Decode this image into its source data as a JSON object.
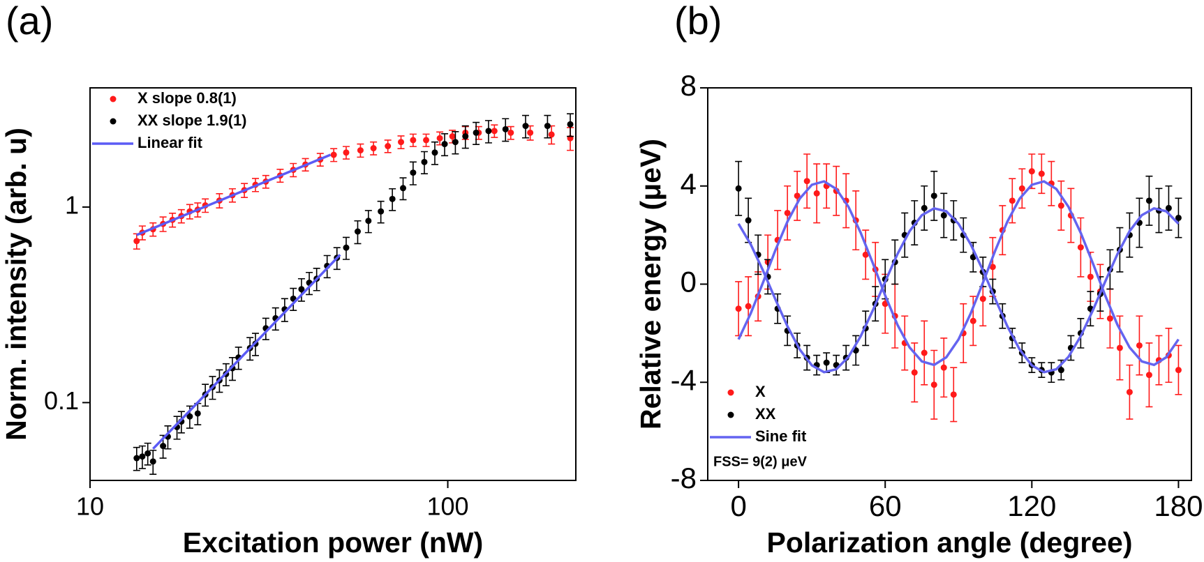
{
  "chart_data": [
    {
      "type": "scatter",
      "label": "(a)",
      "xlabel": "Excitation power (nW)",
      "ylabel": "Norm. intensity (arb. u)",
      "xlog": true,
      "ylog": true,
      "xlim": [
        10,
        228
      ],
      "ylim": [
        0.04,
        4.07
      ],
      "xticks": [
        10,
        100
      ],
      "yticks": [
        0.1,
        1
      ],
      "legend": "upper left",
      "series": [
        {
          "name": "X slope 0.8(1)",
          "color": "#ff1a1a",
          "x": [
            13.5,
            14,
            15,
            16,
            17,
            18,
            19,
            20,
            21,
            23,
            25,
            27,
            29,
            31,
            34,
            37,
            40,
            44,
            48,
            52,
            57,
            62,
            68,
            74,
            80,
            87,
            95,
            103,
            112,
            122,
            135,
            150,
            170,
            195,
            220
          ],
          "values": [
            0.67,
            0.74,
            0.77,
            0.82,
            0.86,
            0.9,
            0.95,
            0.97,
            1.02,
            1.08,
            1.15,
            1.22,
            1.3,
            1.35,
            1.45,
            1.55,
            1.65,
            1.75,
            1.85,
            1.9,
            1.95,
            2.0,
            2.05,
            2.15,
            2.2,
            2.2,
            2.25,
            2.3,
            2.4,
            2.4,
            2.45,
            2.4,
            2.4,
            2.35,
            2.25
          ],
          "errors": [
            0.06,
            0.06,
            0.06,
            0.07,
            0.07,
            0.07,
            0.08,
            0.08,
            0.08,
            0.09,
            0.09,
            0.1,
            0.1,
            0.1,
            0.11,
            0.12,
            0.12,
            0.13,
            0.14,
            0.14,
            0.15,
            0.15,
            0.15,
            0.16,
            0.16,
            0.16,
            0.17,
            0.17,
            0.18,
            0.18,
            0.18,
            0.18,
            0.2,
            0.25,
            0.3
          ]
        },
        {
          "name": "XX slope 1.9(1)",
          "color": "#000000",
          "x": [
            13.5,
            14,
            14.5,
            15,
            16,
            16.5,
            17.5,
            18,
            19,
            20,
            21,
            22,
            23,
            24,
            25,
            26,
            28,
            29,
            31,
            33,
            35,
            37,
            39,
            41,
            43,
            46,
            49,
            52,
            56,
            60,
            65,
            70,
            75,
            80,
            86,
            92,
            98,
            105,
            112,
            120,
            130,
            145,
            165,
            190,
            220
          ],
          "values": [
            0.052,
            0.053,
            0.055,
            0.05,
            0.06,
            0.067,
            0.075,
            0.08,
            0.085,
            0.088,
            0.11,
            0.12,
            0.13,
            0.14,
            0.15,
            0.17,
            0.19,
            0.2,
            0.24,
            0.27,
            0.3,
            0.34,
            0.38,
            0.41,
            0.43,
            0.5,
            0.55,
            0.62,
            0.75,
            0.85,
            0.95,
            1.1,
            1.25,
            1.5,
            1.7,
            1.9,
            2.1,
            2.15,
            2.3,
            2.4,
            2.45,
            2.5,
            2.6,
            2.6,
            2.65
          ],
          "errors": [
            0.007,
            0.007,
            0.007,
            0.007,
            0.008,
            0.009,
            0.01,
            0.01,
            0.011,
            0.011,
            0.014,
            0.016,
            0.017,
            0.018,
            0.02,
            0.022,
            0.025,
            0.026,
            0.03,
            0.035,
            0.04,
            0.044,
            0.05,
            0.053,
            0.056,
            0.065,
            0.07,
            0.08,
            0.1,
            0.11,
            0.12,
            0.14,
            0.16,
            0.2,
            0.22,
            0.25,
            0.27,
            0.28,
            0.3,
            0.31,
            0.32,
            0.33,
            0.34,
            0.34,
            0.35
          ]
        },
        {
          "name": "Linear fit",
          "color": "#5b5bf5",
          "line": true,
          "x": [
            13.5,
            47
          ],
          "values": [
            0.72,
            1.85
          ]
        },
        {
          "color": "#5b5bf5",
          "line": true,
          "x": [
            15,
            50
          ],
          "values": [
            0.058,
            0.57
          ]
        }
      ]
    },
    {
      "type": "scatter",
      "label": "(b)",
      "xlabel": "Polarization angle (degree)",
      "ylabel": "Relative energy (μeV)",
      "xlim": [
        -12.6,
        185.3
      ],
      "ylim": [
        -8,
        8
      ],
      "xticks": [
        0,
        60,
        120,
        180
      ],
      "yticks": [
        -8,
        -4,
        0,
        4,
        8
      ],
      "legend": "lower left",
      "annotation": "FSS= 9(2) μeV",
      "series": [
        {
          "name": "X",
          "color": "#ff1a1a",
          "x": [
            0,
            4,
            8,
            12,
            16,
            20,
            24,
            28,
            32,
            36,
            40,
            44,
            48,
            52,
            56,
            60,
            64,
            68,
            72,
            76,
            80,
            84,
            88,
            92,
            96,
            100,
            104,
            108,
            112,
            116,
            120,
            124,
            128,
            132,
            136,
            140,
            144,
            148,
            152,
            156,
            160,
            164,
            168,
            172,
            176,
            180
          ],
          "values": [
            -1.0,
            -0.9,
            -0.5,
            0.9,
            1.8,
            2.9,
            3.6,
            4.2,
            3.7,
            4.0,
            3.8,
            3.4,
            2.6,
            1.2,
            0.6,
            -0.8,
            -1.3,
            -2.4,
            -3.6,
            -2.8,
            -4.1,
            -3.4,
            -4.5,
            -2.0,
            -1.5,
            -0.6,
            0.7,
            2.2,
            3.4,
            3.9,
            4.6,
            4.5,
            4.1,
            3.2,
            2.8,
            1.5,
            0.3,
            -0.3,
            -1.4,
            -2.6,
            -4.4,
            -2.5,
            -3.7,
            -3.1,
            -2.9,
            -3.5
          ],
          "errors": [
            1.1,
            1.2,
            1.0,
            1.1,
            1.2,
            1.1,
            1.0,
            1.1,
            1.2,
            0.9,
            1.0,
            1.1,
            1.2,
            1.0,
            1.1,
            1.2,
            1.3,
            1.1,
            1.2,
            1.3,
            1.4,
            1.2,
            1.1,
            1.2,
            1.0,
            1.1,
            1.2,
            1.0,
            0.9,
            0.8,
            0.7,
            0.8,
            0.9,
            1.0,
            1.1,
            1.2,
            1.0,
            1.1,
            1.2,
            1.3,
            1.1,
            1.2,
            1.3,
            1.0,
            1.1,
            1.0
          ]
        },
        {
          "name": "XX",
          "color": "#000000",
          "x": [
            0,
            4,
            8,
            12,
            16,
            20,
            24,
            28,
            32,
            36,
            40,
            44,
            48,
            52,
            56,
            60,
            64,
            68,
            72,
            76,
            80,
            84,
            88,
            92,
            96,
            100,
            104,
            108,
            112,
            116,
            120,
            124,
            128,
            132,
            136,
            140,
            144,
            148,
            152,
            156,
            160,
            164,
            168,
            172,
            176,
            180
          ],
          "values": [
            3.9,
            2.6,
            1.2,
            0.3,
            -1.0,
            -1.9,
            -2.5,
            -3.0,
            -3.3,
            -3.2,
            -3.3,
            -3.0,
            -2.7,
            -1.8,
            -0.8,
            0.2,
            0.9,
            2.0,
            2.5,
            3.1,
            3.6,
            2.8,
            2.6,
            2.0,
            1.1,
            0.5,
            -0.3,
            -1.3,
            -2.2,
            -2.8,
            -3.3,
            -3.5,
            -3.6,
            -3.5,
            -2.6,
            -2.0,
            -1.0,
            -0.4,
            0.6,
            1.4,
            2.0,
            2.5,
            3.4,
            3.0,
            3.1,
            2.7
          ],
          "errors": [
            1.1,
            0.9,
            0.8,
            0.7,
            0.6,
            0.6,
            0.5,
            0.5,
            0.4,
            0.4,
            0.4,
            0.5,
            0.6,
            0.7,
            0.7,
            0.8,
            0.9,
            0.9,
            0.9,
            0.9,
            1.0,
            0.9,
            0.8,
            0.7,
            0.6,
            0.6,
            0.5,
            0.5,
            0.4,
            0.4,
            0.3,
            0.3,
            0.4,
            0.4,
            0.5,
            0.6,
            0.7,
            0.7,
            0.8,
            0.9,
            0.9,
            1.0,
            1.0,
            0.9,
            0.9,
            0.8
          ]
        },
        {
          "name": "Sine fit",
          "color": "#6464f0",
          "line": true,
          "x": [
            0,
            5,
            10,
            15,
            20,
            25,
            30,
            35,
            40,
            45,
            50,
            55,
            60,
            65,
            70,
            75,
            80,
            85,
            90,
            95,
            100,
            105,
            110,
            115,
            120,
            125,
            130,
            135,
            140,
            145,
            150,
            155,
            160,
            165,
            170,
            175,
            180
          ],
          "values": [
            -2.25,
            -1.19,
            0.06,
            1.36,
            2.55,
            3.48,
            4.05,
            4.19,
            3.88,
            3.15,
            2.09,
            0.84,
            -0.46,
            -1.65,
            -2.58,
            -3.15,
            -3.29,
            -2.98,
            -2.25,
            -1.19,
            0.06,
            1.36,
            2.55,
            3.48,
            4.05,
            4.19,
            3.88,
            3.15,
            2.09,
            0.84,
            -0.46,
            -1.65,
            -2.58,
            -3.15,
            -3.29,
            -2.98,
            -2.25
          ]
        },
        {
          "color": "#6464f0",
          "line": true,
          "x": [
            0,
            5,
            10,
            15,
            20,
            25,
            30,
            35,
            40,
            45,
            50,
            55,
            60,
            65,
            70,
            75,
            80,
            85,
            90,
            95,
            100,
            105,
            110,
            115,
            120,
            125,
            130,
            135,
            140,
            145,
            150,
            155,
            160,
            165,
            170,
            175,
            180
          ],
          "values": [
            2.46,
            1.62,
            0.56,
            -0.6,
            -1.72,
            -2.66,
            -3.31,
            -3.59,
            -3.47,
            -2.96,
            -2.12,
            -1.06,
            0.1,
            1.22,
            2.16,
            2.81,
            3.09,
            2.97,
            2.46,
            1.62,
            0.56,
            -0.6,
            -1.72,
            -2.66,
            -3.31,
            -3.59,
            -3.47,
            -2.96,
            -2.12,
            -1.06,
            0.1,
            1.22,
            2.16,
            2.81,
            3.09,
            2.97,
            2.46
          ]
        }
      ]
    }
  ]
}
